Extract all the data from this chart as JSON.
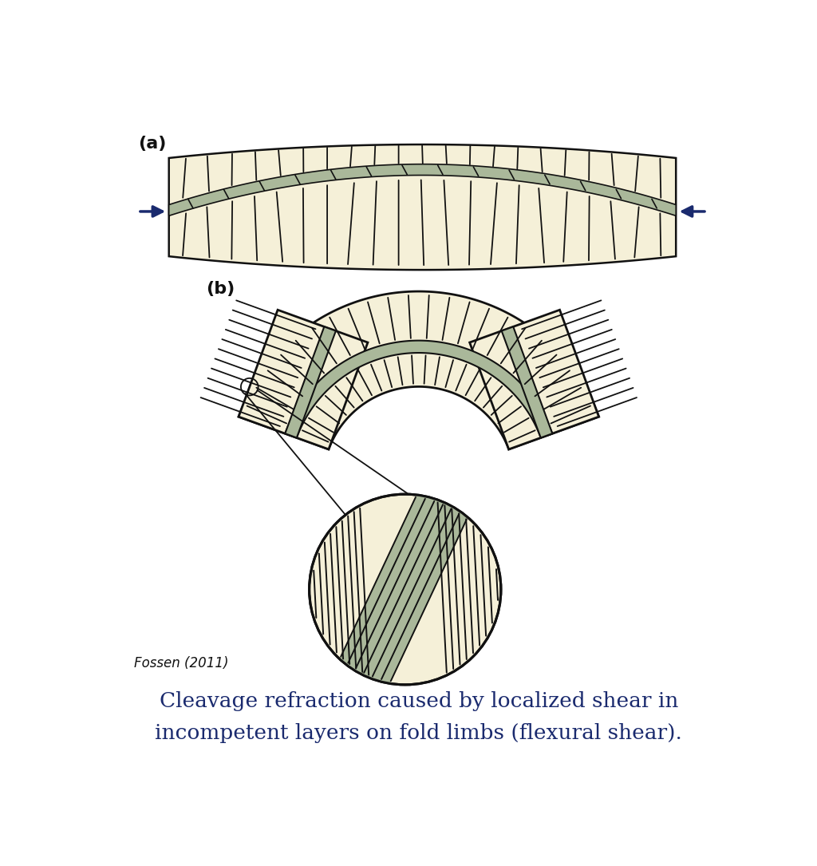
{
  "background_color": "#ffffff",
  "cream_color": "#f5f0d8",
  "gray_color": "#aab89a",
  "dark_color": "#111111",
  "arrow_color": "#1a2a6e",
  "label_a": "(a)",
  "label_b": "(b)",
  "citation": "Fossen (2011)",
  "caption_line1": "Cleavage refraction caused by localized shear in",
  "caption_line2": "incompetent layers on fold limbs (flexural shear).",
  "caption_color": "#1a2a6e",
  "caption_fontsize": 19,
  "fig_width": 10.24,
  "fig_height": 10.85,
  "dpi": 100
}
